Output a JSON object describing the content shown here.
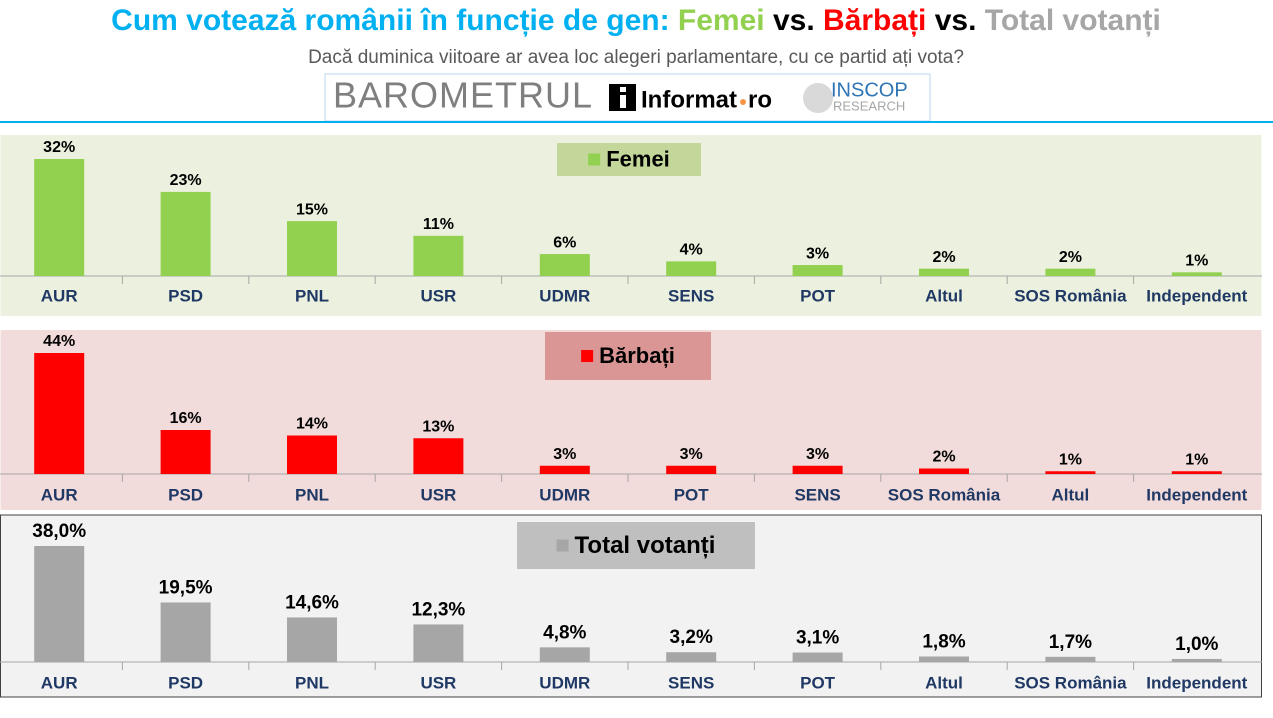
{
  "header": {
    "title_parts": [
      {
        "text": "Cum votează românii în funcție de gen: ",
        "color": "#00b0f0"
      },
      {
        "text": "Femei",
        "color": "#92d050"
      },
      {
        "text": " vs. ",
        "color": "#000000"
      },
      {
        "text": "Bărbați",
        "color": "#ff0000"
      },
      {
        "text": " vs. ",
        "color": "#000000"
      },
      {
        "text": "Total votanți",
        "color": "#a6a6a6"
      }
    ],
    "subtitle": "Dacă duminica viitoare ar avea loc alegeri parlamentare, cu ce partid ați vota?",
    "logos": {
      "barometer": "BAROMETRUL",
      "informat": "Informat",
      "informat_tld": "ro",
      "inscop": "INSCOP",
      "research": "RESEARCH"
    }
  },
  "chart_data": [
    {
      "type": "bar",
      "categories": [
        "AUR",
        "PSD",
        "PNL",
        "USR",
        "UDMR",
        "SENS",
        "POT",
        "Altul",
        "SOS România",
        "Independent"
      ],
      "series": [
        {
          "name": "Femei",
          "color": "#92d050",
          "values": [
            32,
            23,
            15,
            11,
            6,
            4,
            3,
            2,
            2,
            1
          ],
          "value_labels": [
            "32%",
            "23%",
            "15%",
            "11%",
            "6%",
            "4%",
            "3%",
            "2%",
            "2%",
            "1%"
          ]
        }
      ]
    },
    {
      "type": "bar",
      "categories": [
        "AUR",
        "PSD",
        "PNL",
        "USR",
        "UDMR",
        "POT",
        "SENS",
        "SOS România",
        "Altul",
        "Independent"
      ],
      "series": [
        {
          "name": "Bărbați",
          "color": "#ff0000",
          "values": [
            44,
            16,
            14,
            13,
            3,
            3,
            3,
            2,
            1,
            1
          ],
          "value_labels": [
            "44%",
            "16%",
            "14%",
            "13%",
            "3%",
            "3%",
            "3%",
            "2%",
            "1%",
            "1%"
          ]
        }
      ]
    },
    {
      "type": "bar",
      "categories": [
        "AUR",
        "PSD",
        "PNL",
        "USR",
        "UDMR",
        "SENS",
        "POT",
        "Altul",
        "SOS România",
        "Independent"
      ],
      "series": [
        {
          "name": "Total votanți",
          "color": "#a6a6a6",
          "values": [
            38.0,
            19.5,
            14.6,
            12.3,
            4.8,
            3.2,
            3.1,
            1.8,
            1.7,
            1.0
          ],
          "value_labels": [
            "38,0%",
            "19,5%",
            "14,6%",
            "12,3%",
            "4,8%",
            "3,2%",
            "3,1%",
            "1,8%",
            "1,7%",
            "1,0%"
          ]
        }
      ]
    }
  ]
}
